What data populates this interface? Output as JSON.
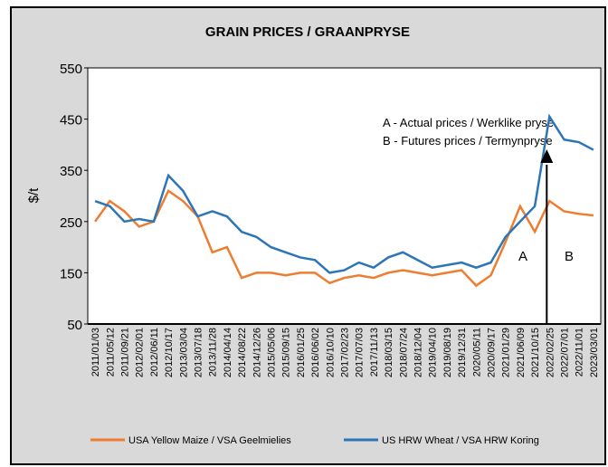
{
  "chart_data": {
    "type": "line",
    "title": "GRAIN PRICES / GRAANPRYSE",
    "y_label": "$/t",
    "categories": [
      "2011/01/03",
      "2011/05/12",
      "2011/09/21",
      "2012/02/01",
      "2012/06/11",
      "2012/10/17",
      "2013/03/04",
      "2013/07/18",
      "2013/11/28",
      "2014/04/14",
      "2014/08/22",
      "2014/12/26",
      "2015/05/06",
      "2015/09/15",
      "2016/01/25",
      "2016/06/02",
      "2016/10/10",
      "2017/02/23",
      "2017/07/03",
      "2017/11/13",
      "2018/03/15",
      "2018/07/24",
      "2018/12/04",
      "2019/04/10",
      "2019/08/19",
      "2019/12/31",
      "2020/05/11",
      "2020/09/17",
      "2021/01/29",
      "2021/06/09",
      "2021/10/15",
      "2022/02/25",
      "2022/07/01",
      "2022/11/01",
      "2023/03/01"
    ],
    "series": [
      {
        "name": "USA Yellow Maize / VSA Geelmielies",
        "color": "#ed7d31",
        "values": [
          250,
          290,
          270,
          240,
          250,
          310,
          290,
          260,
          190,
          200,
          140,
          150,
          150,
          145,
          150,
          150,
          130,
          140,
          145,
          140,
          150,
          155,
          150,
          145,
          150,
          155,
          125,
          145,
          210,
          280,
          230,
          290,
          270,
          265,
          262
        ]
      },
      {
        "name": "US HRW Wheat / VSA HRW Koring",
        "color": "#2e75b6",
        "values": [
          290,
          280,
          250,
          255,
          250,
          340,
          310,
          260,
          270,
          260,
          230,
          220,
          200,
          190,
          180,
          175,
          150,
          155,
          170,
          160,
          180,
          190,
          175,
          160,
          165,
          170,
          160,
          170,
          220,
          250,
          280,
          455,
          410,
          405,
          390
        ]
      }
    ],
    "annotations": [
      "A - Actual prices / Werklike pryse",
      "B - Futures  prices / Termynpryse",
      "A",
      "B"
    ],
    "ylim": [
      50,
      550
    ],
    "yticks": [
      50,
      150,
      250,
      350,
      450,
      550
    ],
    "grid": false,
    "legend": "bottom"
  }
}
